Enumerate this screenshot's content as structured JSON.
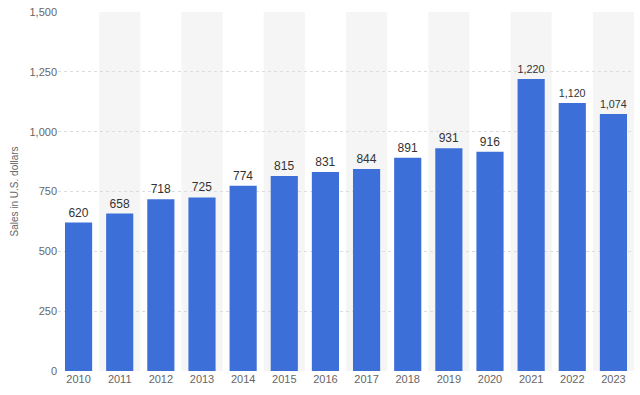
{
  "chart_data": {
    "type": "bar",
    "y_label": "Sales in U.S. dollars",
    "categories": [
      "2010",
      "2011",
      "2012",
      "2013",
      "2014",
      "2015",
      "2016",
      "2017",
      "2018",
      "2019",
      "2020",
      "2021",
      "2022",
      "2023"
    ],
    "values": [
      620,
      658,
      718,
      725,
      774,
      815,
      831,
      844,
      891,
      931,
      916,
      1220,
      1120,
      1074
    ],
    "value_labels": [
      "620",
      "658",
      "718",
      "725",
      "774",
      "815",
      "831",
      "844",
      "891",
      "931",
      "916",
      "1,220",
      "1,120",
      "1,074"
    ],
    "color": "#3d6fd8",
    "ylim": [
      0,
      1500
    ],
    "yticks": [
      0,
      250,
      500,
      750,
      {
        "value": 1000,
        "label": "1,000"
      },
      {
        "value": 1250,
        "label": "1,250"
      },
      {
        "value": 1500,
        "label": "1,500"
      }
    ],
    "grid": true,
    "data_labels": true
  }
}
